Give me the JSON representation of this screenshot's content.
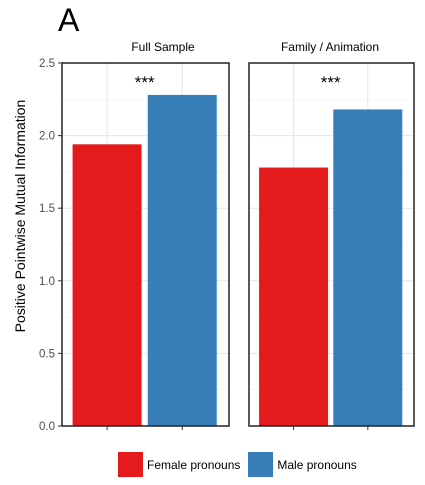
{
  "figure_letter": "A",
  "chart_data": {
    "type": "bar",
    "ylabel": "Positive Pointwise Mutual Information",
    "xlabel": "",
    "ylim": [
      0,
      2.5
    ],
    "yticks": [
      "0.0",
      "0.5",
      "1.0",
      "1.5",
      "2.0",
      "2.5"
    ],
    "grid": true,
    "legend_position": "bottom",
    "series": [
      {
        "name": "Female pronouns",
        "color": "#e41a1c"
      },
      {
        "name": "Male pronouns",
        "color": "#377eb8"
      }
    ],
    "panels": [
      {
        "title": "Full Sample",
        "values": [
          1.94,
          2.28
        ],
        "annotation": "***"
      },
      {
        "title": "Family / Animation",
        "values": [
          1.78,
          2.18
        ],
        "annotation": "***"
      }
    ]
  }
}
